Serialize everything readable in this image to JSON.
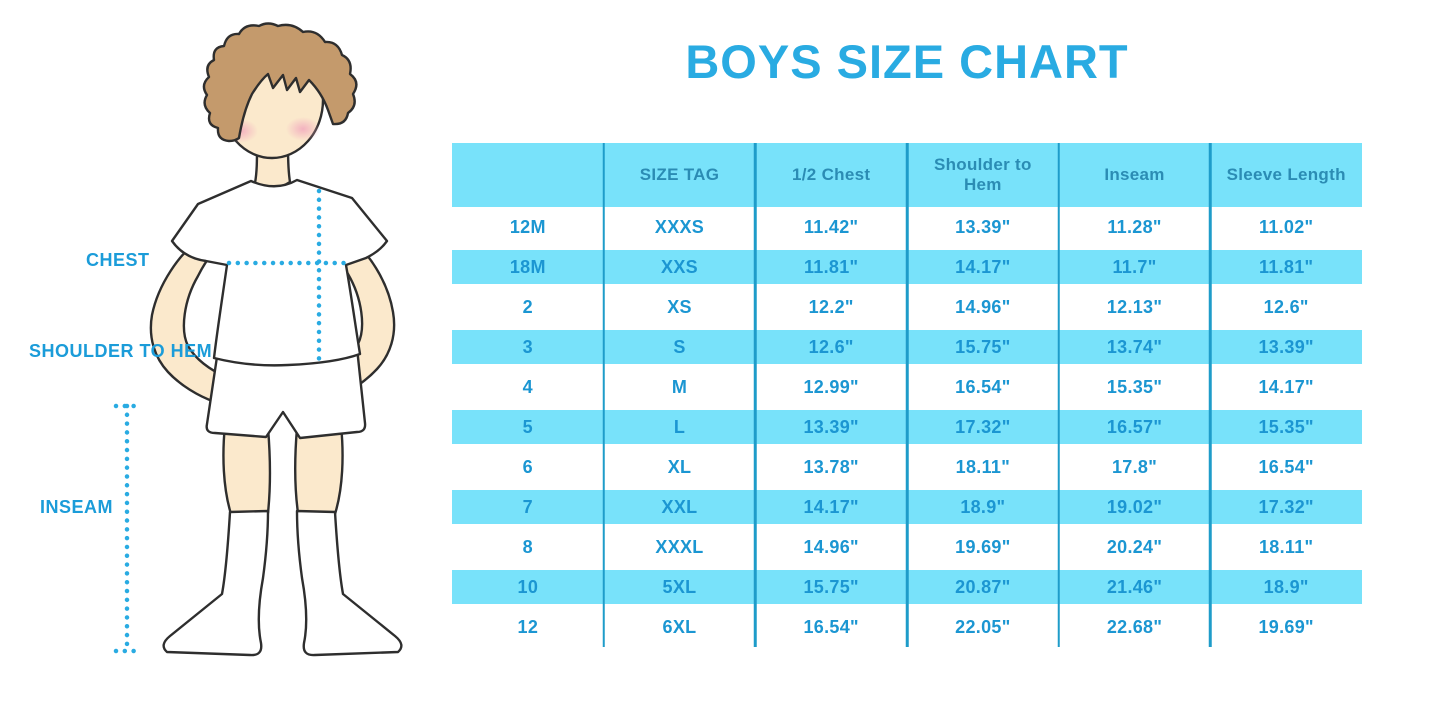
{
  "title": "BOYS SIZE CHART",
  "figure": {
    "description": "boy-illustration-with-measurement-guides",
    "labels": {
      "chest": "CHEST",
      "shoulder_to_hem": "SHOULDER TO HEM",
      "inseam": "INSEAM"
    }
  },
  "chart_data": {
    "type": "table",
    "title": "BOYS SIZE CHART",
    "columns": [
      "",
      "SIZE TAG",
      "1/2 Chest",
      "Shoulder to Hem",
      "Inseam",
      "Sleeve Length"
    ],
    "rows": [
      [
        "12M",
        "XXXS",
        "11.42\"",
        "13.39\"",
        "11.28\"",
        "11.02\""
      ],
      [
        "18M",
        "XXS",
        "11.81\"",
        "14.17\"",
        "11.7\"",
        "11.81\""
      ],
      [
        "2",
        "XS",
        "12.2\"",
        "14.96\"",
        "12.13\"",
        "12.6\""
      ],
      [
        "3",
        "S",
        "12.6\"",
        "15.75\"",
        "13.74\"",
        "13.39\""
      ],
      [
        "4",
        "M",
        "12.99\"",
        "16.54\"",
        "15.35\"",
        "14.17\""
      ],
      [
        "5",
        "L",
        "13.39\"",
        "17.32\"",
        "16.57\"",
        "15.35\""
      ],
      [
        "6",
        "XL",
        "13.78\"",
        "18.11\"",
        "17.8\"",
        "16.54\""
      ],
      [
        "7",
        "XXL",
        "14.17\"",
        "18.9\"",
        "19.02\"",
        "17.32\""
      ],
      [
        "8",
        "XXXL",
        "14.96\"",
        "19.69\"",
        "20.24\"",
        "18.11\""
      ],
      [
        "10",
        "5XL",
        "15.75\"",
        "20.87\"",
        "21.46\"",
        "18.9\""
      ],
      [
        "12",
        "6XL",
        "16.54\"",
        "22.05\"",
        "22.68\"",
        "19.69\""
      ]
    ],
    "layout": {
      "banding": "alternating cyan/white rows",
      "grid": "vertical column dividers only",
      "legend": "none"
    }
  },
  "colors": {
    "title_blue": "#29ABE2",
    "label_blue": "#1B9CD9",
    "band_cyan": "#78E2FA",
    "divider_blue": "#1E9CC9",
    "header_text_blue": "#2B8CB4",
    "cell_text_blue": "#1B96D2",
    "dotted_line_blue": "#29ABE2",
    "skin": "#FBE9CC",
    "hair_brown": "#C49A6C",
    "blush_pink": "#F2ACBE",
    "outline_dark": "#2E2E2E"
  }
}
